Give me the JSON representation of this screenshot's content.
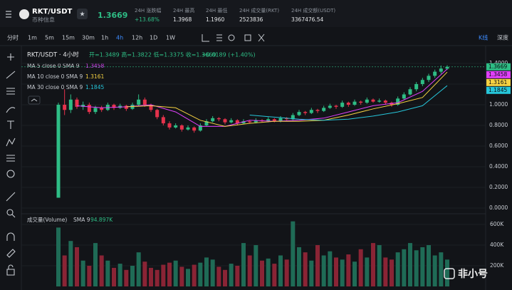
{
  "header": {
    "pair": "RKT/USDT",
    "info": "币种信息",
    "price": "1.3669",
    "stats": [
      {
        "label": "24H 涨跌幅",
        "value": "+13.68%"
      },
      {
        "label": "24H 最高",
        "value": "1.3968"
      },
      {
        "label": "24H 最低",
        "value": "1.1960"
      },
      {
        "label": "24H 成交量(RKT)",
        "value": "2523836"
      },
      {
        "label": "24H 成交额(USDT)",
        "value": "3367476.54"
      }
    ]
  },
  "toolbar": {
    "intervals": [
      "分时",
      "1m",
      "5m",
      "15m",
      "30m",
      "1h",
      "4h",
      "12h",
      "1D",
      "1W"
    ],
    "active": "4h",
    "views": [
      "K线",
      "深度"
    ]
  },
  "legend": {
    "title": "RKT/USDT · 4小时",
    "ohlc": "开=1.3489 高=1.3822 低=1.3375 收=1.3669",
    "change": "+0.0189 (+1.40%)"
  },
  "ma": [
    {
      "name": "MA 5 close 0 SMA 9",
      "last": "1.3458",
      "color": "#e040fb",
      "values": [
        0.99,
        0.97,
        0.98,
        1.0,
        0.93,
        0.79,
        0.79,
        0.85,
        0.84,
        0.85,
        0.87,
        0.93,
        0.99,
        1.02,
        1.13,
        1.3458
      ]
    },
    {
      "name": "MA 10 close 0 SMA 9",
      "last": "1.3161",
      "color": "#f5d142",
      "values": [
        null,
        null,
        0.98,
        0.99,
        0.97,
        0.85,
        0.79,
        0.82,
        0.84,
        0.84,
        0.85,
        0.9,
        0.96,
        1.01,
        1.07,
        1.3161
      ]
    },
    {
      "name": "MA 30 close 0 SMA 9",
      "last": "1.1845",
      "color": "#26c6da",
      "values": [
        null,
        null,
        null,
        null,
        null,
        null,
        null,
        0.9,
        0.88,
        0.86,
        0.85,
        0.86,
        0.89,
        0.93,
        0.99,
        1.1845
      ]
    }
  ],
  "price_ticks": [
    {
      "value": 1.4,
      "label": "1.4000"
    },
    {
      "value": 1.2,
      "label": "1.2000"
    },
    {
      "value": 1,
      "label": "1.0000"
    },
    {
      "value": 0.8,
      "label": "0.8000"
    },
    {
      "value": 0.6,
      "label": "0.6000"
    },
    {
      "value": 0.4,
      "label": "0.4000"
    },
    {
      "value": 0.2,
      "label": "0.2000"
    },
    {
      "value": 0,
      "label": "0.0000"
    }
  ],
  "last_price": {
    "value": 1.3669,
    "label": "1.3669"
  },
  "candles": [
    [
      0.1,
      1.02,
      0.1,
      1.0
    ],
    [
      1.0,
      1.15,
      0.9,
      0.95
    ],
    [
      0.95,
      1.1,
      0.92,
      1.05
    ],
    [
      1.05,
      1.07,
      0.96,
      0.98
    ],
    [
      0.98,
      1.03,
      0.95,
      1.0
    ],
    [
      1.0,
      1.02,
      0.91,
      0.93
    ],
    [
      0.93,
      0.99,
      0.91,
      0.97
    ],
    [
      0.97,
      0.99,
      0.93,
      0.95
    ],
    [
      0.95,
      1.02,
      0.94,
      1.0
    ],
    [
      1.0,
      1.01,
      0.95,
      0.97
    ],
    [
      0.97,
      1.01,
      0.96,
      0.99
    ],
    [
      0.99,
      1.0,
      0.94,
      0.96
    ],
    [
      0.96,
      1.02,
      0.95,
      1.0
    ],
    [
      1.0,
      1.1,
      0.99,
      1.05
    ],
    [
      1.05,
      1.07,
      0.98,
      1.0
    ],
    [
      1.0,
      1.01,
      0.93,
      0.95
    ],
    [
      0.95,
      0.96,
      0.86,
      0.88
    ],
    [
      0.88,
      0.9,
      0.8,
      0.82
    ],
    [
      0.82,
      0.84,
      0.76,
      0.78
    ],
    [
      0.78,
      0.82,
      0.77,
      0.8
    ],
    [
      0.8,
      0.81,
      0.74,
      0.76
    ],
    [
      0.76,
      0.8,
      0.75,
      0.78
    ],
    [
      0.78,
      0.79,
      0.73,
      0.75
    ],
    [
      0.75,
      0.82,
      0.74,
      0.8
    ],
    [
      0.8,
      0.86,
      0.79,
      0.84
    ],
    [
      0.84,
      0.89,
      0.83,
      0.87
    ],
    [
      0.87,
      0.88,
      0.84,
      0.86
    ],
    [
      0.86,
      0.87,
      0.81,
      0.83
    ],
    [
      0.83,
      0.87,
      0.82,
      0.85
    ],
    [
      0.85,
      0.86,
      0.8,
      0.82
    ],
    [
      0.82,
      0.86,
      0.81,
      0.84
    ],
    [
      0.84,
      0.85,
      0.82,
      0.83
    ],
    [
      0.83,
      0.87,
      0.82,
      0.85
    ],
    [
      0.85,
      0.86,
      0.83,
      0.84
    ],
    [
      0.84,
      0.88,
      0.83,
      0.86
    ],
    [
      0.86,
      0.87,
      0.83,
      0.84
    ],
    [
      0.84,
      0.89,
      0.83,
      0.87
    ],
    [
      0.87,
      0.88,
      0.85,
      0.86
    ],
    [
      0.86,
      0.92,
      0.85,
      0.9
    ],
    [
      0.9,
      0.95,
      0.89,
      0.93
    ],
    [
      0.93,
      0.94,
      0.9,
      0.92
    ],
    [
      0.92,
      0.97,
      0.91,
      0.95
    ],
    [
      0.95,
      0.96,
      0.92,
      0.94
    ],
    [
      0.94,
      0.99,
      0.93,
      0.97
    ],
    [
      0.97,
      1.01,
      0.96,
      0.99
    ],
    [
      0.99,
      1.0,
      0.96,
      0.98
    ],
    [
      0.98,
      1.04,
      0.97,
      1.02
    ],
    [
      1.02,
      1.03,
      0.98,
      1.0
    ],
    [
      1.0,
      1.05,
      0.99,
      1.03
    ],
    [
      1.03,
      1.04,
      1.0,
      1.02
    ],
    [
      1.02,
      1.07,
      1.01,
      1.05
    ],
    [
      1.05,
      1.06,
      1.02,
      1.03
    ],
    [
      1.03,
      1.06,
      1.02,
      1.04
    ],
    [
      1.04,
      1.05,
      1.0,
      1.02
    ],
    [
      1.02,
      1.03,
      0.98,
      1.0
    ],
    [
      1.0,
      1.08,
      0.99,
      1.06
    ],
    [
      1.06,
      1.12,
      1.05,
      1.1
    ],
    [
      1.1,
      1.17,
      1.09,
      1.15
    ],
    [
      1.15,
      1.22,
      1.13,
      1.2
    ],
    [
      1.2,
      1.26,
      1.18,
      1.24
    ],
    [
      1.24,
      1.3,
      1.22,
      1.28
    ],
    [
      1.28,
      1.34,
      1.26,
      1.32
    ],
    [
      1.32,
      1.38,
      1.3,
      1.35
    ],
    [
      1.3489,
      1.3822,
      1.3375,
      1.3669
    ]
  ],
  "volume": {
    "label": "成交量(Volume)",
    "sma": "SMA 9",
    "sma_value": "94.897K",
    "ticks": [
      {
        "value": 600000,
        "label": "600K"
      },
      {
        "value": 400000,
        "label": "400K"
      },
      {
        "value": 200000,
        "label": "200K"
      }
    ],
    "values": [
      570000,
      300000,
      440000,
      380000,
      250000,
      200000,
      420000,
      300000,
      250000,
      180000,
      220000,
      160000,
      200000,
      330000,
      240000,
      180000,
      160000,
      210000,
      230000,
      250000,
      190000,
      170000,
      210000,
      230000,
      280000,
      260000,
      190000,
      160000,
      220000,
      200000,
      420000,
      300000,
      400000,
      250000,
      270000,
      220000,
      300000,
      260000,
      630000,
      380000,
      330000,
      250000,
      400000,
      300000,
      340000,
      280000,
      260000,
      310000,
      240000,
      360000,
      280000,
      420000,
      400000,
      280000,
      260000,
      330000,
      360000,
      420000,
      350000,
      380000,
      400000,
      300000,
      330000,
      260000
    ]
  },
  "watermark": "非小号"
}
